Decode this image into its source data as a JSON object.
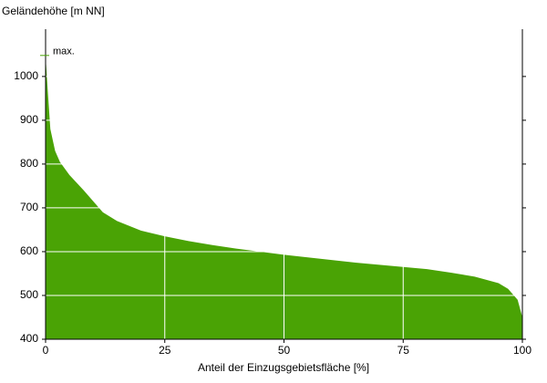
{
  "chart_data": {
    "type": "area",
    "ylabel": "Geländehöhe [m NN]",
    "xlabel": "Anteil der Einzugsgebietsfläche [%]",
    "x": [
      0,
      0.5,
      1,
      2,
      3,
      5,
      8,
      10,
      12,
      15,
      20,
      25,
      30,
      35,
      40,
      45,
      50,
      55,
      60,
      65,
      70,
      75,
      80,
      85,
      90,
      95,
      97,
      99,
      100
    ],
    "series": [
      {
        "color": "#4aa305",
        "values": [
          1045,
          960,
          880,
          830,
          805,
          775,
          740,
          715,
          690,
          670,
          648,
          635,
          624,
          615,
          607,
          600,
          593,
          587,
          581,
          575,
          570,
          565,
          560,
          552,
          543,
          528,
          515,
          490,
          450
        ]
      }
    ],
    "max_label": "max.",
    "max_value": 1048,
    "max_color": "#4aa305",
    "xlim": [
      0,
      100
    ],
    "ylim": [
      400,
      1108
    ],
    "xticks": [
      0,
      25,
      50,
      75,
      100
    ],
    "yticks": [
      400,
      500,
      600,
      700,
      800,
      900,
      1000
    ],
    "grid": true,
    "grid_color": "#ffffff"
  }
}
